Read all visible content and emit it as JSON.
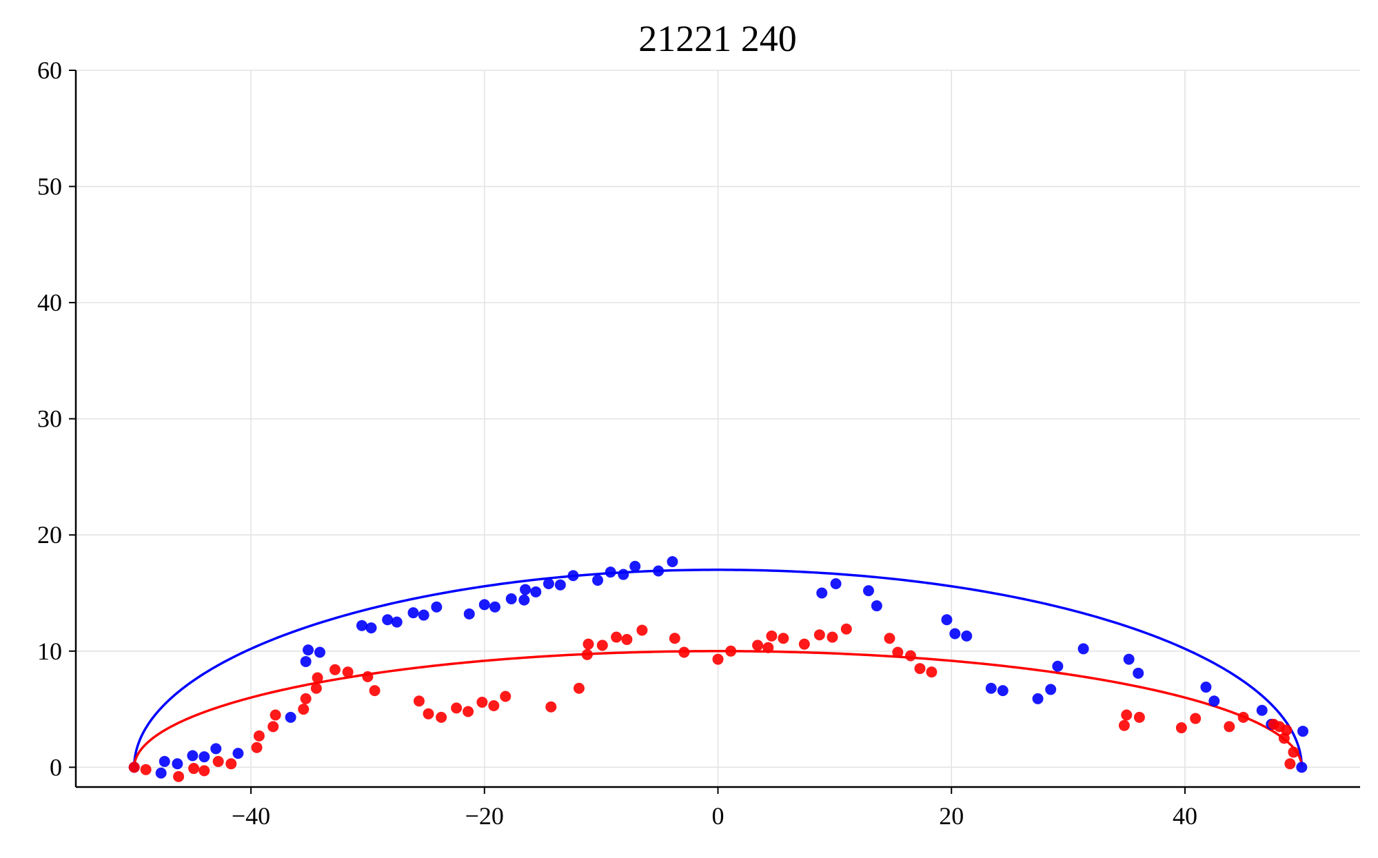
{
  "chart_data": {
    "type": "scatter",
    "title": "21221 240",
    "xlim": [
      -55,
      55
    ],
    "ylim": [
      -1.7,
      60
    ],
    "x_ticks": [
      -40,
      -20,
      0,
      20,
      40
    ],
    "y_ticks": [
      0,
      10,
      20,
      30,
      40,
      50,
      60
    ],
    "x_tick_labels": [
      "−40",
      "−20",
      "0",
      "20",
      "40"
    ],
    "y_tick_labels": [
      "0",
      "10",
      "20",
      "30",
      "40",
      "50",
      "60"
    ],
    "grid": true,
    "colors": {
      "blue": "#0000ff",
      "red": "#ff0000"
    },
    "curves": [
      {
        "type": "half-ellipse",
        "color": "#0000ff",
        "x_center": 0,
        "half_width": 50,
        "height": 17
      },
      {
        "type": "half-ellipse",
        "color": "#ff0000",
        "x_center": 0,
        "half_width": 50,
        "height": 10
      }
    ],
    "series": [
      {
        "color": "#0000ff",
        "points": [
          [
            -50,
            0
          ],
          [
            -47.7,
            -0.5
          ],
          [
            -47.4,
            0.5
          ],
          [
            -46.3,
            0.3
          ],
          [
            -45,
            1.0
          ],
          [
            -44,
            0.9
          ],
          [
            -43,
            1.6
          ],
          [
            -41.1,
            1.2
          ],
          [
            -36.6,
            4.3
          ],
          [
            -35.3,
            9.1
          ],
          [
            -35.1,
            10.1
          ],
          [
            -34.1,
            9.9
          ],
          [
            -30.5,
            12.2
          ],
          [
            -29.7,
            12.0
          ],
          [
            -28.3,
            12.7
          ],
          [
            -27.5,
            12.5
          ],
          [
            -26.1,
            13.3
          ],
          [
            -25.2,
            13.1
          ],
          [
            -24.1,
            13.8
          ],
          [
            -21.3,
            13.2
          ],
          [
            -20,
            14.0
          ],
          [
            -19.1,
            13.8
          ],
          [
            -17.7,
            14.5
          ],
          [
            -16.6,
            14.4
          ],
          [
            -16.5,
            15.3
          ],
          [
            -15.6,
            15.1
          ],
          [
            -14.5,
            15.8
          ],
          [
            -13.5,
            15.7
          ],
          [
            -12.4,
            16.5
          ],
          [
            -10.3,
            16.1
          ],
          [
            -9.2,
            16.8
          ],
          [
            -8.1,
            16.6
          ],
          [
            -7.1,
            17.3
          ],
          [
            -5.1,
            16.9
          ],
          [
            -3.9,
            17.7
          ],
          [
            8.9,
            15.0
          ],
          [
            10.1,
            15.8
          ],
          [
            12.9,
            15.2
          ],
          [
            13.6,
            13.9
          ],
          [
            19.6,
            12.7
          ],
          [
            20.3,
            11.5
          ],
          [
            21.3,
            11.3
          ],
          [
            23.4,
            6.8
          ],
          [
            24.4,
            6.6
          ],
          [
            27.4,
            5.9
          ],
          [
            28.5,
            6.7
          ],
          [
            29.1,
            8.7
          ],
          [
            31.3,
            10.2
          ],
          [
            35.2,
            9.3
          ],
          [
            36,
            8.1
          ],
          [
            41.8,
            6.9
          ],
          [
            42.5,
            5.7
          ],
          [
            46.6,
            4.9
          ],
          [
            47.4,
            3.7
          ],
          [
            50.1,
            3.1
          ],
          [
            50,
            0
          ]
        ]
      },
      {
        "color": "#ff0000",
        "points": [
          [
            -50,
            0
          ],
          [
            -49,
            -0.2
          ],
          [
            -46.2,
            -0.8
          ],
          [
            -44.9,
            -0.1
          ],
          [
            -44,
            -0.3
          ],
          [
            -42.8,
            0.5
          ],
          [
            -41.7,
            0.3
          ],
          [
            -39.5,
            1.7
          ],
          [
            -39.3,
            2.7
          ],
          [
            -38.1,
            3.5
          ],
          [
            -37.9,
            4.5
          ],
          [
            -35.5,
            5.0
          ],
          [
            -35.3,
            5.9
          ],
          [
            -34.4,
            6.8
          ],
          [
            -34.3,
            7.7
          ],
          [
            -32.8,
            8.4
          ],
          [
            -31.7,
            8.2
          ],
          [
            -30,
            7.8
          ],
          [
            -29.4,
            6.6
          ],
          [
            -25.6,
            5.7
          ],
          [
            -24.8,
            4.6
          ],
          [
            -23.7,
            4.3
          ],
          [
            -22.4,
            5.1
          ],
          [
            -21.4,
            4.8
          ],
          [
            -20.2,
            5.6
          ],
          [
            -19.2,
            5.3
          ],
          [
            -18.2,
            6.1
          ],
          [
            -14.3,
            5.2
          ],
          [
            -11.9,
            6.8
          ],
          [
            -11.2,
            9.7
          ],
          [
            -11.1,
            10.6
          ],
          [
            -9.9,
            10.5
          ],
          [
            -8.7,
            11.2
          ],
          [
            -7.8,
            11.0
          ],
          [
            -6.5,
            11.8
          ],
          [
            -3.7,
            11.1
          ],
          [
            -2.9,
            9.9
          ],
          [
            0,
            9.3
          ],
          [
            1.1,
            10.0
          ],
          [
            3.4,
            10.5
          ],
          [
            4.3,
            10.3
          ],
          [
            4.6,
            11.3
          ],
          [
            5.6,
            11.1
          ],
          [
            7.4,
            10.6
          ],
          [
            8.7,
            11.4
          ],
          [
            9.8,
            11.2
          ],
          [
            11,
            11.9
          ],
          [
            14.7,
            11.1
          ],
          [
            15.4,
            9.9
          ],
          [
            16.5,
            9.6
          ],
          [
            17.3,
            8.5
          ],
          [
            18.3,
            8.2
          ],
          [
            34.8,
            3.6
          ],
          [
            35,
            4.5
          ],
          [
            36.1,
            4.3
          ],
          [
            39.7,
            3.4
          ],
          [
            40.9,
            4.2
          ],
          [
            43.8,
            3.5
          ],
          [
            45,
            4.3
          ],
          [
            47.6,
            3.7
          ],
          [
            48.1,
            3.5
          ],
          [
            48.5,
            2.5
          ],
          [
            48.7,
            3.2
          ],
          [
            49,
            0.3
          ],
          [
            49.3,
            1.3
          ]
        ]
      }
    ]
  }
}
